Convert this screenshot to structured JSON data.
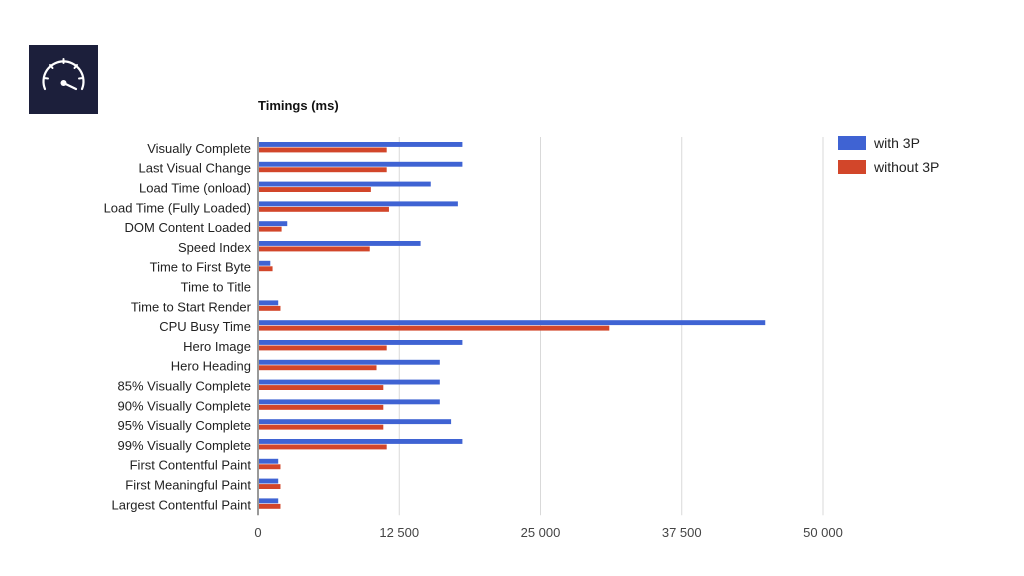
{
  "logo": {
    "icon": "speedometer-icon"
  },
  "chart_data": {
    "type": "bar",
    "orientation": "horizontal",
    "title": "Timings (ms)",
    "categories": [
      "Visually Complete",
      "Last Visual Change",
      "Load Time (onload)",
      "Load Time (Fully Loaded)",
      "DOM Content Loaded",
      "Speed Index",
      "Time to First Byte",
      "Time to Title",
      "Time to Start Render",
      "CPU Busy Time",
      "Hero Image",
      "Hero Heading",
      "85% Visually Complete",
      "90% Visually Complete",
      "95% Visually Complete",
      "99% Visually Complete",
      "First Contentful Paint",
      "First Meaningful Paint",
      "Largest Contentful Paint"
    ],
    "series": [
      {
        "name": "with 3P",
        "color": "#3f63d3",
        "values": [
          18000,
          18000,
          15200,
          17600,
          2500,
          14300,
          1000,
          0,
          1700,
          44800,
          18000,
          16000,
          16000,
          16000,
          17000,
          18000,
          1700,
          1700,
          1700
        ]
      },
      {
        "name": "without 3P",
        "color": "#d2462a",
        "values": [
          11300,
          11300,
          9900,
          11500,
          2000,
          9800,
          1200,
          0,
          1900,
          31000,
          11300,
          10400,
          11000,
          11000,
          11000,
          11300,
          1900,
          1900,
          1900
        ]
      }
    ],
    "xlim": [
      0,
      50000
    ],
    "xticks": [
      0,
      12500,
      25000,
      37500,
      50000
    ],
    "xtick_labels": [
      "0",
      "12 500",
      "25 000",
      "37 500",
      "50 000"
    ],
    "grid": true,
    "legend_position": "top-right"
  }
}
